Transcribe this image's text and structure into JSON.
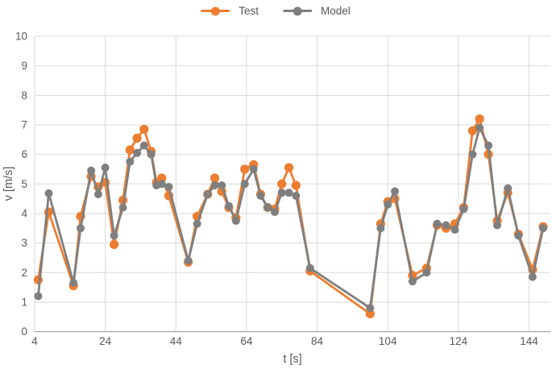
{
  "chart_data": {
    "type": "line",
    "title": "",
    "xlabel": "t [s]",
    "ylabel": "v [m/s]",
    "xlim": [
      4,
      150
    ],
    "ylim": [
      0,
      10
    ],
    "x_ticks": [
      4,
      24,
      44,
      64,
      84,
      104,
      124,
      144
    ],
    "y_ticks": [
      0,
      1,
      2,
      3,
      4,
      5,
      6,
      7,
      8,
      9,
      10
    ],
    "grid": true,
    "legend_position": "top-center",
    "x": [
      5,
      8,
      15,
      17,
      20,
      22,
      24,
      26.5,
      29,
      31,
      33,
      35,
      37,
      38.5,
      40,
      42,
      47.5,
      50,
      53,
      55,
      57,
      59,
      61,
      63.5,
      66,
      68,
      70,
      72,
      74,
      76,
      78,
      82,
      99,
      102,
      104,
      106,
      111,
      115,
      118,
      120.5,
      123,
      125.5,
      128,
      130,
      132.5,
      135,
      138,
      141,
      145,
      148
    ],
    "series": [
      {
        "name": "Test",
        "color": "#ED7D31",
        "values": [
          1.75,
          4.05,
          1.55,
          3.9,
          5.25,
          4.9,
          5.05,
          2.95,
          4.45,
          6.15,
          6.55,
          6.85,
          6.1,
          5.05,
          5.2,
          4.6,
          2.35,
          3.9,
          4.65,
          5.2,
          4.75,
          4.2,
          3.85,
          5.5,
          5.65,
          4.65,
          4.2,
          4.15,
          5.0,
          5.55,
          4.95,
          2.05,
          0.6,
          3.65,
          4.4,
          4.5,
          1.9,
          2.15,
          3.6,
          3.5,
          3.65,
          4.2,
          6.8,
          7.2,
          6.0,
          3.75,
          4.7,
          3.3,
          2.1,
          3.55
        ]
      },
      {
        "name": "Model",
        "color": "#7F7F7F",
        "values": [
          1.2,
          4.68,
          1.65,
          3.5,
          5.45,
          4.65,
          5.55,
          3.25,
          4.2,
          5.75,
          6.05,
          6.3,
          6.0,
          4.95,
          5.0,
          4.9,
          2.4,
          3.65,
          4.65,
          4.95,
          4.95,
          4.25,
          3.75,
          5.0,
          5.5,
          4.6,
          4.2,
          4.05,
          4.7,
          4.7,
          4.6,
          2.15,
          0.8,
          3.5,
          4.3,
          4.75,
          1.7,
          2.0,
          3.65,
          3.6,
          3.45,
          4.15,
          6.0,
          6.9,
          6.3,
          3.6,
          4.85,
          3.25,
          1.85,
          3.5
        ]
      }
    ]
  },
  "colors": {
    "gridline": "#D9D9D9",
    "axis_line": "#A6A6A6",
    "tick_text": "#595959",
    "background": "#FFFFFF"
  }
}
